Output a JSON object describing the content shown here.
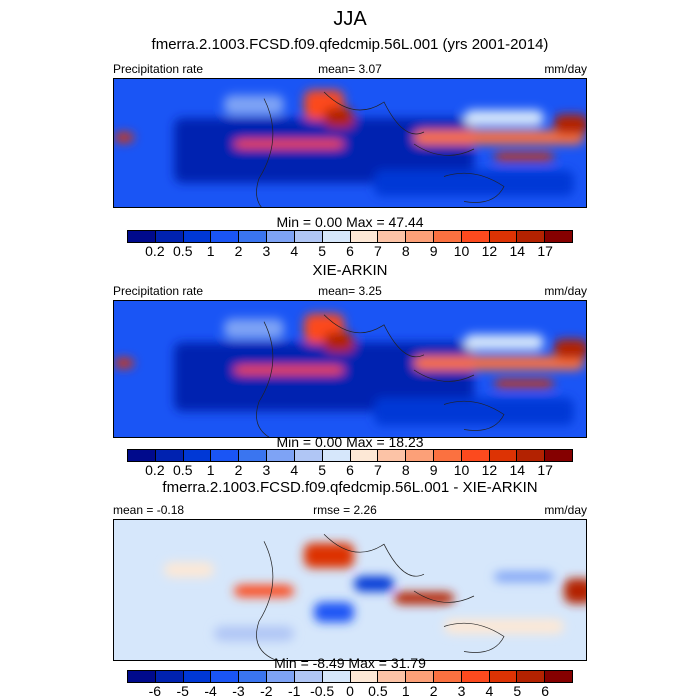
{
  "title": "JJA",
  "panels": [
    {
      "title": "fmerra.2.1003.FCSD.f09.qfedcmip.56L.001 (yrs 2001-2014)",
      "left": "Precipitation rate",
      "center": "mean=   3.07",
      "right": "mm/day",
      "minmax": "Min =   0.00 Max =  47.44",
      "levels": [
        "0.2",
        "0.5",
        "1",
        "2",
        "3",
        "4",
        "5",
        "6",
        "7",
        "8",
        "9",
        "10",
        "12",
        "14",
        "17"
      ]
    },
    {
      "title": "XIE-ARKIN",
      "left": "Precipitation rate",
      "center": "mean=   3.25",
      "right": "mm/day",
      "minmax": "Min =   0.00 Max =  18.23",
      "levels": [
        "0.2",
        "0.5",
        "1",
        "2",
        "3",
        "4",
        "5",
        "6",
        "7",
        "8",
        "9",
        "10",
        "12",
        "14",
        "17"
      ]
    },
    {
      "title": "fmerra.2.1003.FCSD.f09.qfedcmip.56L.001 - XIE-ARKIN",
      "left": "mean = -0.18",
      "center": "rmse =  2.26",
      "right": "mm/day",
      "minmax": "Min =  -8.49 Max =  31.79",
      "levels": [
        "-6",
        "-5",
        "-4",
        "-3",
        "-2",
        "-1",
        "-0.5",
        "0",
        "0.5",
        "1",
        "2",
        "3",
        "4",
        "5",
        "6"
      ]
    }
  ],
  "colors": [
    "#000a8c",
    "#0022b0",
    "#0038d6",
    "#1a55f5",
    "#3a75f0",
    "#7ea3f5",
    "#b0c6f5",
    "#d6e7fb",
    "#fde8d6",
    "#fcc3a6",
    "#fca078",
    "#fb7140",
    "#fc4a1e",
    "#dd3304",
    "#b32201",
    "#850000"
  ]
}
